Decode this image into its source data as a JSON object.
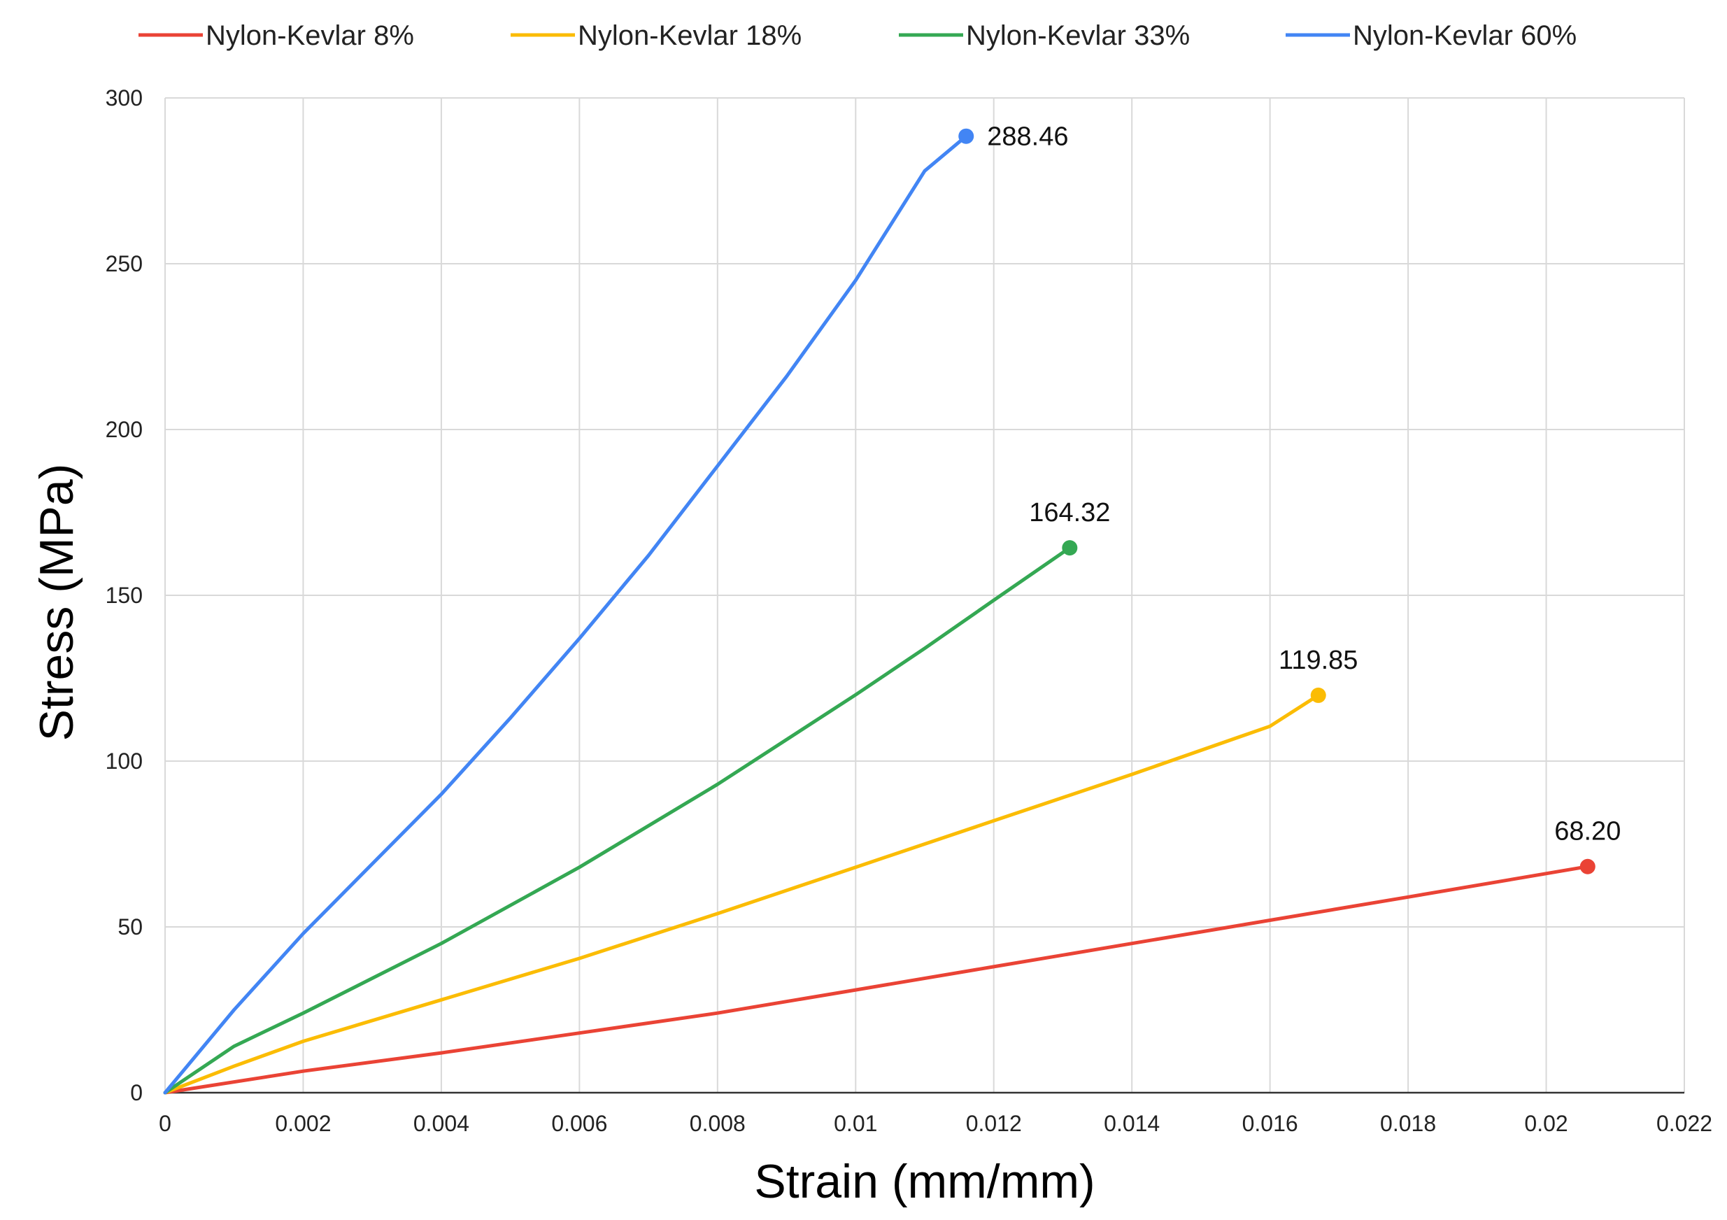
{
  "chart_data": {
    "type": "line",
    "title": "",
    "xlabel": "Strain (mm/mm)",
    "ylabel": "Stress (MPa)",
    "xlim": [
      0,
      0.022
    ],
    "ylim": [
      0,
      300
    ],
    "grid": true,
    "legend_position": "top",
    "x_tick_labels": [
      "0",
      "0.002",
      "0.004",
      "0.006",
      "0.008",
      "0.01",
      "0.012",
      "0.014",
      "0.016",
      "0.018",
      "0.02",
      "0.022"
    ],
    "y_tick_labels": [
      "0",
      "50",
      "100",
      "150",
      "200",
      "250",
      "300"
    ],
    "series": [
      {
        "name": "Nylon-Kevlar 8%",
        "color": "#ea4335",
        "x": [
          0,
          0.002,
          0.004,
          0.006,
          0.008,
          0.01,
          0.012,
          0.014,
          0.016,
          0.018,
          0.0206
        ],
        "y": [
          0,
          6.5,
          12,
          18,
          24,
          31,
          38,
          45,
          52,
          59,
          68.2
        ],
        "end_label": "68.20"
      },
      {
        "name": "Nylon-Kevlar 18%",
        "color": "#fbbc04",
        "x": [
          0,
          0.001,
          0.002,
          0.004,
          0.006,
          0.008,
          0.01,
          0.012,
          0.014,
          0.016,
          0.0167
        ],
        "y": [
          0,
          8,
          15.5,
          28,
          40.5,
          54,
          68,
          82,
          96,
          110.5,
          119.85
        ],
        "end_label": "119.85"
      },
      {
        "name": "Nylon-Kevlar 33%",
        "color": "#34a853",
        "x": [
          0,
          0.001,
          0.002,
          0.004,
          0.006,
          0.008,
          0.01,
          0.011,
          0.012,
          0.0131
        ],
        "y": [
          0,
          14,
          24,
          45,
          68,
          93,
          120,
          134,
          148.5,
          164.32
        ],
        "end_label": "164.32"
      },
      {
        "name": "Nylon-Kevlar 60%",
        "color": "#4285f4",
        "x": [
          0,
          0.001,
          0.002,
          0.003,
          0.004,
          0.005,
          0.006,
          0.007,
          0.008,
          0.009,
          0.01,
          0.011,
          0.0116
        ],
        "y": [
          0,
          25,
          48,
          69,
          90,
          113,
          137,
          162,
          189,
          216,
          245,
          278,
          288.46
        ],
        "end_label": "288.46"
      }
    ]
  }
}
